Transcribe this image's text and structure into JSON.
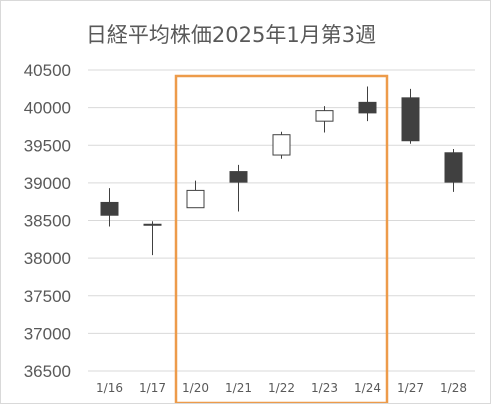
{
  "colors": {
    "grid": "#d9d9d9",
    "text": "#595959",
    "up_fill": "#ffffff",
    "down_fill": "#404040",
    "candle_line": "#404040",
    "highlight": "#ed9b4a"
  },
  "chart_data": {
    "type": "candlestick",
    "title": "日経平均株価2025年1月第3週",
    "categories": [
      "1/16",
      "1/17",
      "1/20",
      "1/21",
      "1/22",
      "1/23",
      "1/24",
      "1/27",
      "1/28"
    ],
    "ylim": [
      36500,
      40500
    ],
    "yticks": [
      36500,
      37000,
      37500,
      38000,
      38500,
      39000,
      39500,
      40000,
      40500
    ],
    "grid": true,
    "ohlc": [
      {
        "open": 38740,
        "high": 38930,
        "low": 38420,
        "close": 38570
      },
      {
        "open": 38450,
        "high": 38490,
        "low": 38040,
        "close": 38440
      },
      {
        "open": 38670,
        "high": 39030,
        "low": 38670,
        "close": 38900
      },
      {
        "open": 39150,
        "high": 39240,
        "low": 38620,
        "close": 39010
      },
      {
        "open": 39370,
        "high": 39680,
        "low": 39320,
        "close": 39640
      },
      {
        "open": 39820,
        "high": 40020,
        "low": 39670,
        "close": 39960
      },
      {
        "open": 40070,
        "high": 40280,
        "low": 39820,
        "close": 39930
      },
      {
        "open": 40130,
        "high": 40250,
        "low": 39520,
        "close": 39560
      },
      {
        "open": 39400,
        "high": 39450,
        "low": 38880,
        "close": 39010
      }
    ],
    "highlight_range": [
      "1/20",
      "1/24"
    ]
  }
}
